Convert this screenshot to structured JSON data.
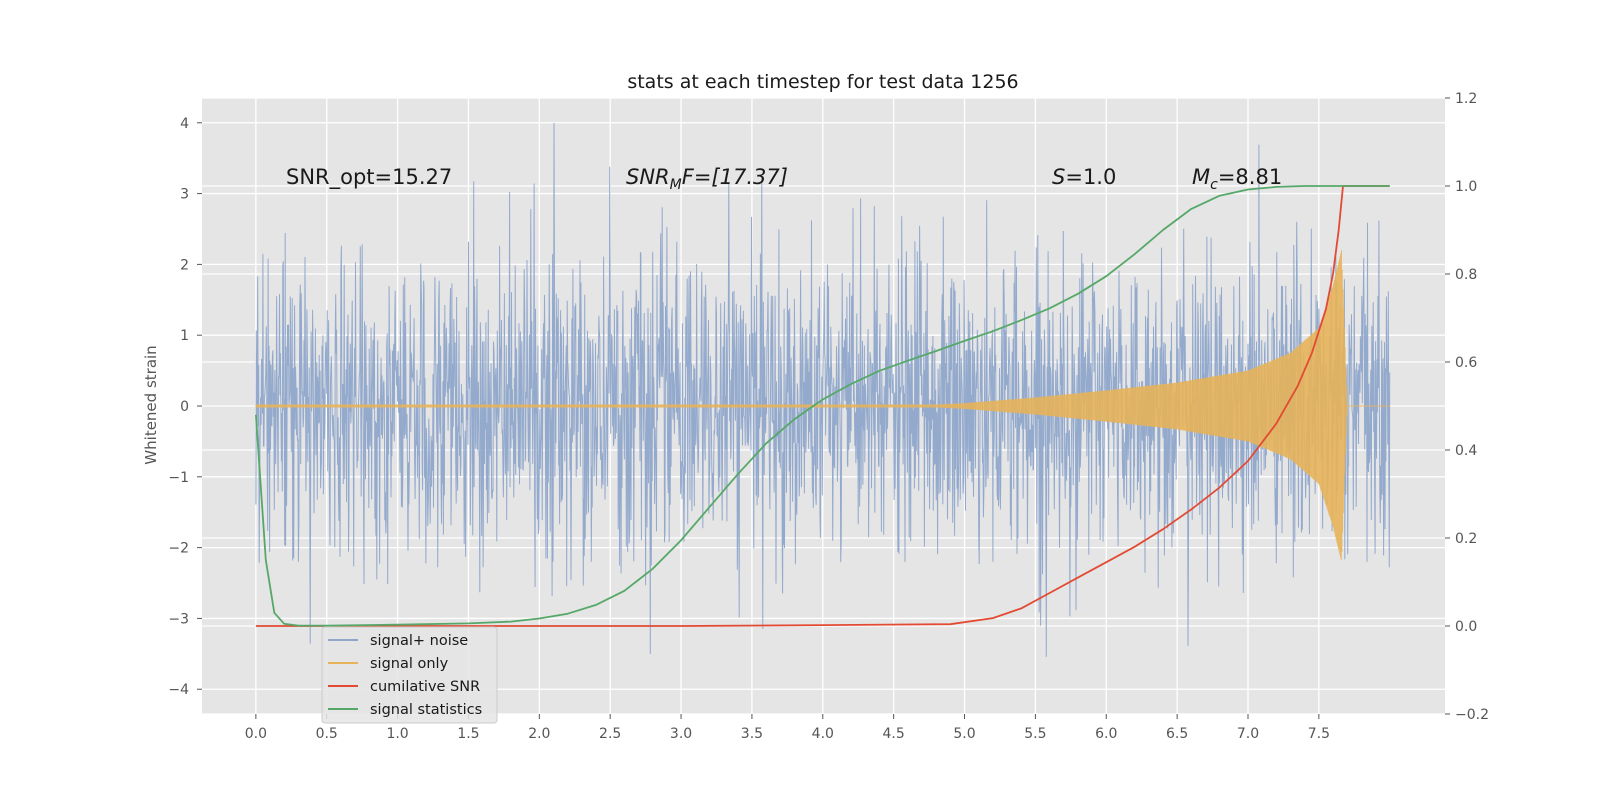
{
  "chart_data": {
    "type": "line",
    "title": "stats at each timestep for test data 1256",
    "ylabel": "Whitened strain",
    "ylabel_right": "",
    "xlabel": "",
    "xlim": [
      -0.38,
      8.39
    ],
    "ylim": [
      -4.35,
      4.35
    ],
    "y2lim": [
      -0.2,
      1.2
    ],
    "xticks": [
      "0.0",
      "0.5",
      "1.0",
      "1.5",
      "2.0",
      "2.5",
      "3.0",
      "3.5",
      "4.0",
      "4.5",
      "5.0",
      "5.5",
      "6.0",
      "6.5",
      "7.0",
      "7.5"
    ],
    "yticks": [
      "4",
      "3",
      "2",
      "1",
      "0",
      "−1",
      "−2",
      "−3",
      "−4"
    ],
    "y2ticks": [
      "1.2",
      "1.0",
      "0.8",
      "0.6",
      "0.4",
      "0.2",
      "0.0",
      "−0.2"
    ],
    "grid": true,
    "legend_location": "lower-left",
    "annotations": {
      "snr_opt": "SNR_opt=15.27",
      "snr_mf_main": "SNR",
      "snr_mf_sub": "M",
      "snr_mf_rest": "F=[17.37]",
      "stat_s": "S",
      "stat_s_rest": "=1.0",
      "mc_main": "M",
      "mc_sub": "c",
      "mc_rest": "=8.81"
    },
    "series": [
      {
        "name": "signal+ noise",
        "axis": "left",
        "color": "#8fa6cb",
        "style": "dense-noise",
        "t_start": 0.0,
        "t_end": 8.0,
        "noise_sigma": 1.0,
        "typical_peak_range": [
          -3.9,
          4.0
        ]
      },
      {
        "name": "signal only",
        "axis": "left",
        "color": "#e6b35a",
        "style": "chirp-envelope",
        "envelope_t": [
          0.0,
          4.8,
          5.0,
          5.5,
          6.0,
          6.5,
          7.0,
          7.3,
          7.5,
          7.6,
          7.66,
          7.7,
          8.0
        ],
        "envelope_amp": [
          0.02,
          0.02,
          0.04,
          0.12,
          0.22,
          0.33,
          0.5,
          0.75,
          1.1,
          1.7,
          2.2,
          0.0,
          0.0
        ]
      },
      {
        "name": "cumilative SNR",
        "axis": "right",
        "color": "#e24a33",
        "x": [
          0.0,
          1.0,
          2.0,
          3.0,
          4.0,
          4.9,
          5.2,
          5.4,
          5.6,
          5.8,
          6.0,
          6.2,
          6.4,
          6.6,
          6.8,
          7.0,
          7.2,
          7.35,
          7.45,
          7.55,
          7.6,
          7.64,
          7.67,
          8.0
        ],
        "y": [
          0.0,
          0.0,
          0.0,
          0.0,
          0.002,
          0.004,
          0.018,
          0.04,
          0.075,
          0.11,
          0.145,
          0.18,
          0.22,
          0.265,
          0.315,
          0.375,
          0.46,
          0.545,
          0.62,
          0.72,
          0.8,
          0.9,
          1.0,
          1.0
        ]
      },
      {
        "name": "signal statistics",
        "axis": "right",
        "color": "#55a868",
        "x": [
          0.0,
          0.07,
          0.13,
          0.2,
          0.3,
          0.5,
          1.0,
          1.5,
          1.8,
          2.0,
          2.2,
          2.4,
          2.6,
          2.8,
          3.0,
          3.2,
          3.4,
          3.6,
          3.8,
          4.0,
          4.2,
          4.4,
          4.6,
          4.8,
          5.0,
          5.2,
          5.4,
          5.6,
          5.8,
          6.0,
          6.2,
          6.4,
          6.6,
          6.8,
          7.0,
          7.2,
          7.4,
          7.6,
          8.0
        ],
        "y": [
          0.48,
          0.15,
          0.03,
          0.005,
          0.001,
          0.001,
          0.003,
          0.006,
          0.01,
          0.017,
          0.028,
          0.048,
          0.08,
          0.13,
          0.195,
          0.27,
          0.345,
          0.415,
          0.47,
          0.515,
          0.55,
          0.58,
          0.603,
          0.625,
          0.648,
          0.67,
          0.695,
          0.722,
          0.755,
          0.795,
          0.845,
          0.9,
          0.948,
          0.978,
          0.992,
          0.998,
          1.0,
          1.0,
          1.0
        ]
      }
    ]
  }
}
